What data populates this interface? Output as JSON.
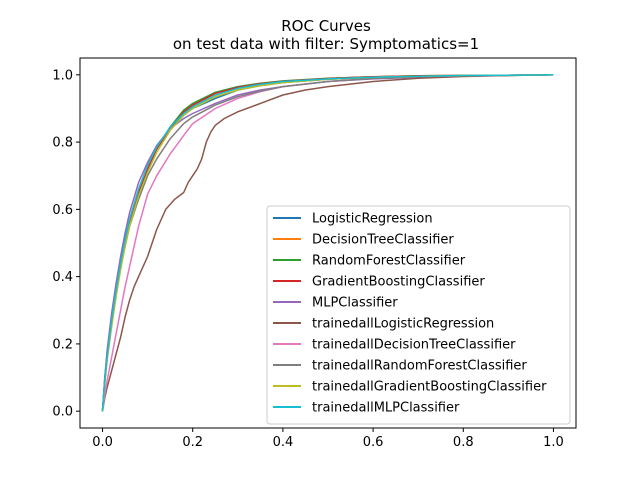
{
  "chart_data": {
    "type": "line",
    "title": "ROC Curves",
    "subtitle": "on test data with filter: Symptomatics=1",
    "xlabel": "",
    "ylabel": "",
    "xlim": [
      -0.05,
      1.05
    ],
    "ylim": [
      -0.05,
      1.05
    ],
    "xticks": [
      "0.0",
      "0.2",
      "0.4",
      "0.6",
      "0.8",
      "1.0"
    ],
    "yticks": [
      "0.0",
      "0.2",
      "0.4",
      "0.6",
      "0.8",
      "1.0"
    ],
    "grid": false,
    "legend_position": "lower right",
    "series": [
      {
        "name": "LogisticRegression",
        "color": "#1f77b4",
        "x": [
          0,
          0.005,
          0.01,
          0.02,
          0.03,
          0.04,
          0.05,
          0.06,
          0.08,
          0.1,
          0.12,
          0.15,
          0.18,
          0.2,
          0.25,
          0.3,
          0.35,
          0.4,
          0.5,
          0.6,
          0.7,
          0.8,
          0.9,
          1.0
        ],
        "y": [
          0,
          0.1,
          0.17,
          0.27,
          0.36,
          0.44,
          0.51,
          0.57,
          0.66,
          0.73,
          0.78,
          0.84,
          0.88,
          0.9,
          0.93,
          0.955,
          0.968,
          0.977,
          0.987,
          0.993,
          0.996,
          0.998,
          0.999,
          1.0
        ]
      },
      {
        "name": "DecisionTreeClassifier",
        "color": "#ff7f0e",
        "x": [
          0,
          0.005,
          0.01,
          0.02,
          0.03,
          0.04,
          0.05,
          0.06,
          0.08,
          0.1,
          0.12,
          0.15,
          0.18,
          0.2,
          0.25,
          0.3,
          0.35,
          0.4,
          0.5,
          0.6,
          0.7,
          0.8,
          0.9,
          1.0
        ],
        "y": [
          0,
          0.09,
          0.16,
          0.26,
          0.35,
          0.43,
          0.5,
          0.56,
          0.65,
          0.72,
          0.78,
          0.845,
          0.89,
          0.91,
          0.945,
          0.963,
          0.973,
          0.981,
          0.989,
          0.994,
          0.997,
          0.998,
          0.999,
          1.0
        ]
      },
      {
        "name": "RandomForestClassifier",
        "color": "#2ca02c",
        "x": [
          0,
          0.005,
          0.01,
          0.02,
          0.03,
          0.04,
          0.05,
          0.06,
          0.08,
          0.1,
          0.12,
          0.15,
          0.18,
          0.2,
          0.25,
          0.3,
          0.35,
          0.4,
          0.5,
          0.6,
          0.7,
          0.8,
          0.9,
          1.0
        ],
        "y": [
          0,
          0.09,
          0.16,
          0.26,
          0.35,
          0.43,
          0.5,
          0.56,
          0.65,
          0.72,
          0.78,
          0.845,
          0.895,
          0.915,
          0.948,
          0.965,
          0.975,
          0.982,
          0.99,
          0.994,
          0.997,
          0.998,
          0.999,
          1.0
        ]
      },
      {
        "name": "GradientBoostingClassifier",
        "color": "#d62728",
        "x": [
          0,
          0.005,
          0.01,
          0.02,
          0.03,
          0.04,
          0.05,
          0.06,
          0.08,
          0.1,
          0.12,
          0.15,
          0.18,
          0.2,
          0.25,
          0.3,
          0.35,
          0.4,
          0.5,
          0.6,
          0.7,
          0.8,
          0.9,
          1.0
        ],
        "y": [
          0,
          0.09,
          0.16,
          0.26,
          0.35,
          0.43,
          0.5,
          0.56,
          0.65,
          0.72,
          0.78,
          0.84,
          0.89,
          0.91,
          0.945,
          0.963,
          0.974,
          0.981,
          0.989,
          0.994,
          0.997,
          0.998,
          0.999,
          1.0
        ]
      },
      {
        "name": "MLPClassifier",
        "color": "#9467bd",
        "x": [
          0,
          0.005,
          0.01,
          0.02,
          0.03,
          0.04,
          0.05,
          0.06,
          0.08,
          0.1,
          0.12,
          0.15,
          0.18,
          0.2,
          0.25,
          0.3,
          0.35,
          0.4,
          0.5,
          0.6,
          0.7,
          0.8,
          0.9,
          1.0
        ],
        "y": [
          0,
          0.1,
          0.18,
          0.29,
          0.38,
          0.46,
          0.53,
          0.59,
          0.68,
          0.74,
          0.79,
          0.84,
          0.87,
          0.885,
          0.915,
          0.94,
          0.955,
          0.965,
          0.98,
          0.988,
          0.993,
          0.996,
          0.998,
          1.0
        ]
      },
      {
        "name": "trainedallLogisticRegression",
        "color": "#8c564b",
        "x": [
          0,
          0.005,
          0.01,
          0.02,
          0.03,
          0.04,
          0.05,
          0.06,
          0.07,
          0.08,
          0.1,
          0.12,
          0.14,
          0.16,
          0.18,
          0.19,
          0.2,
          0.21,
          0.22,
          0.23,
          0.24,
          0.25,
          0.27,
          0.3,
          0.35,
          0.4,
          0.45,
          0.5,
          0.6,
          0.7,
          0.8,
          0.9,
          1.0
        ],
        "y": [
          0,
          0.04,
          0.07,
          0.12,
          0.17,
          0.22,
          0.28,
          0.33,
          0.37,
          0.4,
          0.46,
          0.54,
          0.6,
          0.63,
          0.65,
          0.68,
          0.7,
          0.72,
          0.75,
          0.8,
          0.83,
          0.85,
          0.87,
          0.89,
          0.915,
          0.94,
          0.955,
          0.965,
          0.98,
          0.99,
          0.995,
          0.998,
          1.0
        ]
      },
      {
        "name": "trainedallDecisionTreeClassifier",
        "color": "#e377c2",
        "x": [
          0,
          0.005,
          0.01,
          0.02,
          0.03,
          0.04,
          0.05,
          0.06,
          0.08,
          0.1,
          0.12,
          0.15,
          0.18,
          0.2,
          0.25,
          0.3,
          0.35,
          0.4,
          0.5,
          0.6,
          0.7,
          0.8,
          0.9,
          1.0
        ],
        "y": [
          0,
          0.05,
          0.09,
          0.16,
          0.23,
          0.3,
          0.37,
          0.43,
          0.55,
          0.645,
          0.7,
          0.765,
          0.82,
          0.855,
          0.9,
          0.93,
          0.95,
          0.965,
          0.98,
          0.99,
          0.995,
          0.997,
          0.999,
          1.0
        ]
      },
      {
        "name": "trainedallRandomForestClassifier",
        "color": "#7f7f7f",
        "x": [
          0,
          0.005,
          0.01,
          0.02,
          0.03,
          0.04,
          0.05,
          0.06,
          0.08,
          0.1,
          0.12,
          0.15,
          0.18,
          0.2,
          0.25,
          0.3,
          0.35,
          0.4,
          0.5,
          0.6,
          0.7,
          0.8,
          0.9,
          1.0
        ],
        "y": [
          0,
          0.09,
          0.16,
          0.26,
          0.35,
          0.43,
          0.49,
          0.55,
          0.63,
          0.7,
          0.75,
          0.81,
          0.855,
          0.875,
          0.91,
          0.935,
          0.952,
          0.965,
          0.98,
          0.989,
          0.994,
          0.997,
          0.999,
          1.0
        ]
      },
      {
        "name": "trainedallGradientBoostingClassifier",
        "color": "#bcbd22",
        "x": [
          0,
          0.005,
          0.01,
          0.02,
          0.03,
          0.04,
          0.05,
          0.06,
          0.08,
          0.1,
          0.12,
          0.15,
          0.18,
          0.2,
          0.25,
          0.3,
          0.35,
          0.4,
          0.5,
          0.6,
          0.7,
          0.8,
          0.9,
          1.0
        ],
        "y": [
          0,
          0.08,
          0.15,
          0.25,
          0.34,
          0.42,
          0.49,
          0.55,
          0.64,
          0.71,
          0.77,
          0.835,
          0.88,
          0.9,
          0.935,
          0.955,
          0.968,
          0.977,
          0.987,
          0.993,
          0.996,
          0.998,
          0.999,
          1.0
        ]
      },
      {
        "name": "trainedallMLPClassifier",
        "color": "#17becf",
        "x": [
          0,
          0.005,
          0.01,
          0.02,
          0.03,
          0.04,
          0.05,
          0.06,
          0.08,
          0.1,
          0.12,
          0.15,
          0.18,
          0.2,
          0.25,
          0.3,
          0.35,
          0.4,
          0.5,
          0.6,
          0.7,
          0.8,
          0.9,
          1.0
        ],
        "y": [
          0,
          0.09,
          0.16,
          0.27,
          0.36,
          0.44,
          0.51,
          0.57,
          0.66,
          0.73,
          0.785,
          0.845,
          0.885,
          0.905,
          0.94,
          0.96,
          0.972,
          0.98,
          0.988,
          0.993,
          0.996,
          0.998,
          0.999,
          1.0
        ]
      }
    ]
  }
}
